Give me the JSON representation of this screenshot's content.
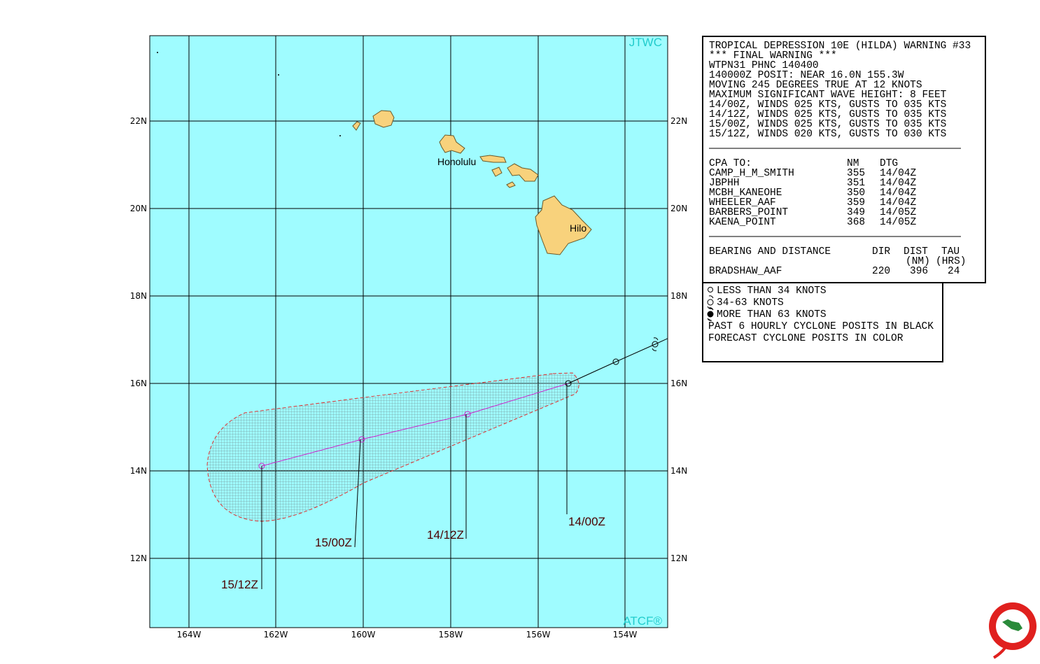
{
  "map": {
    "top_label": "JTWC",
    "bottom_label": "ATCF®",
    "lon_labels": [
      "164W",
      "162W",
      "160W",
      "158W",
      "156W",
      "154W"
    ],
    "lat_labels": [
      "22N",
      "20N",
      "18N",
      "16N",
      "14N",
      "12N"
    ],
    "places": [
      "Honolulu",
      "Hilo"
    ],
    "forecast_times": [
      "14/00Z",
      "14/12Z",
      "15/00Z",
      "15/12Z"
    ]
  },
  "warning": {
    "lines": [
      "TROPICAL DEPRESSION 10E (HILDA) WARNING #33",
      "*** FINAL WARNING ***",
      "WTPN31 PHNC 140400",
      "140000Z POSIT: NEAR 16.0N 155.3W",
      "MOVING 245 DEGREES TRUE AT 12 KNOTS",
      "MAXIMUM SIGNIFICANT WAVE HEIGHT: 8 FEET",
      "14/00Z, WINDS 025 KTS, GUSTS TO 035 KTS",
      "14/12Z, WINDS 025 KTS, GUSTS TO 035 KTS",
      "15/00Z, WINDS 025 KTS, GUSTS TO 035 KTS",
      "15/12Z, WINDS 020 KTS, GUSTS TO 030 KTS"
    ],
    "cpa_header": [
      "CPA TO:",
      "NM",
      "DTG"
    ],
    "cpa_rows": [
      [
        "CAMP_H_M_SMITH",
        355,
        "14/04Z"
      ],
      [
        "JBPHH",
        351,
        "14/04Z"
      ],
      [
        "MCBH_KANEOHE",
        350,
        "14/04Z"
      ],
      [
        "WHEELER_AAF",
        359,
        "14/04Z"
      ],
      [
        "BARBERS_POINT",
        349,
        "14/05Z"
      ],
      [
        "KAENA_POINT",
        368,
        "14/05Z"
      ]
    ],
    "bearing_header": [
      "BEARING AND DISTANCE",
      "DIR",
      "DIST",
      "TAU"
    ],
    "bearing_units": [
      "(NM)",
      "(HRS)"
    ],
    "bearing_rows": [
      [
        "BRADSHAW_AAF",
        220,
        396,
        24
      ]
    ]
  },
  "legend": [
    "LESS THAN 34 KNOTS",
    "34-63 KNOTS",
    "MORE THAN 63 KNOTS",
    "PAST 6 HOURLY CYCLONE POSITS IN BLACK",
    "FORECAST CYCLONE POSITS IN COLOR"
  ]
}
